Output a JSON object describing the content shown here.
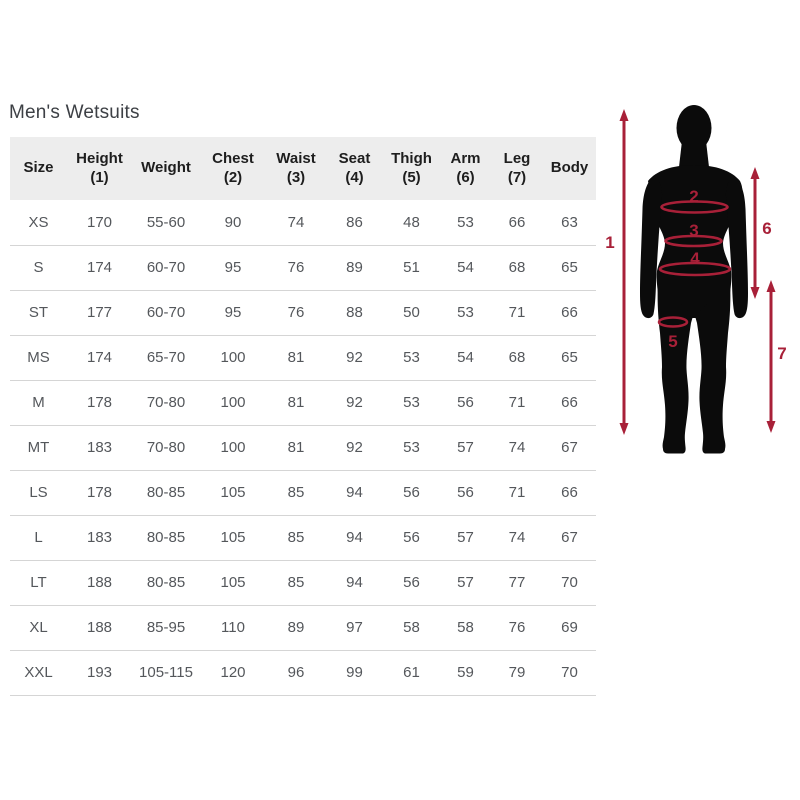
{
  "page": {
    "title": "Men's Wetsuits"
  },
  "theme": {
    "accent": "#a82038",
    "silhouette": "#0b0b0b",
    "header_bg": "#ededed",
    "text_dark": "#1e1e1e",
    "text_gray": "#54575b",
    "divider": "#d5d5d5",
    "title_color": "#3d4045"
  },
  "table": {
    "columns": [
      {
        "line1": "Size",
        "line2": ""
      },
      {
        "line1": "Height",
        "line2": "(1)"
      },
      {
        "line1": "Weight",
        "line2": ""
      },
      {
        "line1": "Chest",
        "line2": "(2)"
      },
      {
        "line1": "Waist",
        "line2": "(3)"
      },
      {
        "line1": "Seat",
        "line2": "(4)"
      },
      {
        "line1": "Thigh",
        "line2": "(5)"
      },
      {
        "line1": "Arm",
        "line2": "(6)"
      },
      {
        "line1": "Leg",
        "line2": "(7)"
      },
      {
        "line1": "Body",
        "line2": ""
      }
    ],
    "rows": [
      [
        "XS",
        "170",
        "55-60",
        "90",
        "74",
        "86",
        "48",
        "53",
        "66",
        "63"
      ],
      [
        "S",
        "174",
        "60-70",
        "95",
        "76",
        "89",
        "51",
        "54",
        "68",
        "65"
      ],
      [
        "ST",
        "177",
        "60-70",
        "95",
        "76",
        "88",
        "50",
        "53",
        "71",
        "66"
      ],
      [
        "MS",
        "174",
        "65-70",
        "100",
        "81",
        "92",
        "53",
        "54",
        "68",
        "65"
      ],
      [
        "M",
        "178",
        "70-80",
        "100",
        "81",
        "92",
        "53",
        "56",
        "71",
        "66"
      ],
      [
        "MT",
        "183",
        "70-80",
        "100",
        "81",
        "92",
        "53",
        "57",
        "74",
        "67"
      ],
      [
        "LS",
        "178",
        "80-85",
        "105",
        "85",
        "94",
        "56",
        "56",
        "71",
        "66"
      ],
      [
        "L",
        "183",
        "80-85",
        "105",
        "85",
        "94",
        "56",
        "57",
        "74",
        "67"
      ],
      [
        "LT",
        "188",
        "80-85",
        "105",
        "85",
        "94",
        "56",
        "57",
        "77",
        "70"
      ],
      [
        "XL",
        "188",
        "85-95",
        "110",
        "89",
        "97",
        "58",
        "58",
        "76",
        "69"
      ],
      [
        "XXL",
        "193",
        "105-115",
        "120",
        "96",
        "99",
        "61",
        "59",
        "79",
        "70"
      ]
    ]
  },
  "figure": {
    "labels": {
      "height": "1",
      "chest": "2",
      "waist": "3",
      "seat": "4",
      "thigh": "5",
      "arm": "6",
      "leg": "7"
    }
  }
}
